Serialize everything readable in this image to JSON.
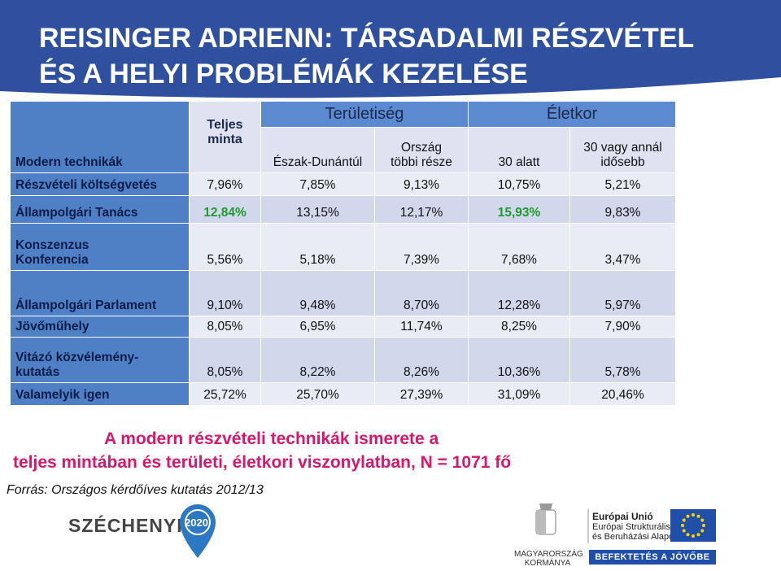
{
  "header": {
    "title_lines": [
      "REISINGER ADRIENN: TÁRSADALMI RÉSZVÉTEL",
      "ÉS A HELYI PROBLÉMÁK KEZELÉSE"
    ]
  },
  "table": {
    "corner": "Modern technikák",
    "total_header": [
      "Teljes",
      "minta"
    ],
    "group_headers": [
      "Területiség",
      "Életkor"
    ],
    "columns": [
      [
        "Észak-Dunántúl"
      ],
      [
        "Ország",
        "többi része"
      ],
      [
        "30 alatt"
      ],
      [
        "30 vagy annál",
        "idősebb"
      ]
    ],
    "highlight_color": "#1e9a2c",
    "rows": [
      {
        "label": [
          "Részvételi költségvetés"
        ],
        "values": [
          "7,96%",
          "7,85%",
          "9,13%",
          "10,75%",
          "5,21%"
        ],
        "highlight": []
      },
      {
        "label": [
          "Állampolgári Tanács"
        ],
        "values": [
          "12,84%",
          "13,15%",
          "12,17%",
          "15,93%",
          "9,83%"
        ],
        "highlight": [
          0,
          3
        ]
      },
      {
        "label": [
          "Konszenzus",
          "Konferencia"
        ],
        "values": [
          "5,56%",
          "5,18%",
          "7,39%",
          "7,68%",
          "3,47%"
        ],
        "highlight": []
      },
      {
        "label": [
          "Állampolgári Parlament"
        ],
        "values": [
          "9,10%",
          "9,48%",
          "8,70%",
          "12,28%",
          "5,97%"
        ],
        "highlight": []
      },
      {
        "label": [
          "Jövőműhely"
        ],
        "values": [
          "8,05%",
          "6,95%",
          "11,74%",
          "8,25%",
          "7,90%"
        ],
        "highlight": []
      },
      {
        "label": [
          "Vitázó közvélemény-",
          "kutatás"
        ],
        "values": [
          "8,05%",
          "8,22%",
          "8,26%",
          "10,36%",
          "5,78%"
        ],
        "highlight": []
      },
      {
        "label": [
          "Valamelyik igen"
        ],
        "values": [
          "25,72%",
          "25,70%",
          "27,39%",
          "31,09%",
          "20,46%"
        ],
        "highlight": []
      }
    ]
  },
  "caption": [
    "A modern részvételi technikák ismerete a",
    "teljes mintában és területi, életkori viszonylatban, N = 1071 fő"
  ],
  "source": "Forrás: Országos kérdőíves kutatás 2012/13",
  "logos": {
    "szechenyi": "SZÉCHENYI",
    "year": "2020",
    "gov": [
      "MAGYARORSZÁG",
      "KORMÁNYA"
    ],
    "eu": [
      "Európai Unió",
      "Európai Strukturális",
      "és Beruházási Alapok"
    ],
    "slogan": "BEFEKTETÉS A JÖVŐBE"
  }
}
